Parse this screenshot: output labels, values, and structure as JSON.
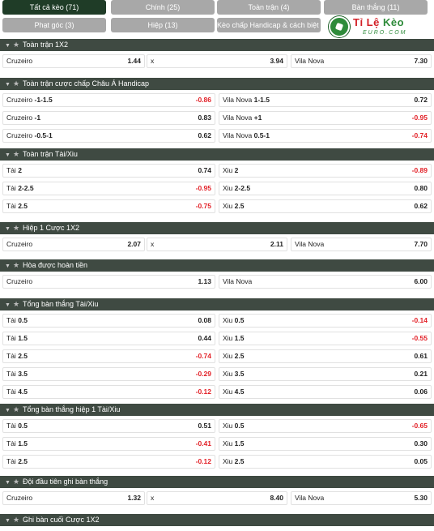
{
  "tabs": [
    {
      "label": "Tất cả kèo (71)",
      "active": true
    },
    {
      "label": "Chính (25)"
    },
    {
      "label": "Toàn trận (4)"
    },
    {
      "label": "Bàn thắng (11)"
    },
    {
      "label": "Phạt góc (3)"
    },
    {
      "label": "Hiệp (13)"
    },
    {
      "label": "Kèo chấp Handicap & cách biệt (3)"
    }
  ],
  "logo": {
    "brand_a": "Tỉ Lệ ",
    "brand_b": "Kèo",
    "sub": "EURO.COM"
  },
  "sections": [
    {
      "title": "Toàn trận 1X2",
      "rows": [
        [
          {
            "label": "Cruzeiro",
            "odd": "1.44"
          },
          {
            "label": "x",
            "odd": "3.94"
          },
          {
            "label": "Vila Nova",
            "odd": "7.30"
          }
        ]
      ]
    },
    {
      "title": "Toàn trận cược chấp Châu Á Handicap",
      "rows": [
        [
          {
            "label": "Cruzeiro",
            "line": "-1-1.5",
            "odd": "-0.86"
          },
          {
            "label": "Vila Nova",
            "line": "1-1.5",
            "odd": "0.72"
          }
        ],
        [
          {
            "label": "Cruzeiro",
            "line": "-1",
            "odd": "0.83"
          },
          {
            "label": "Vila Nova",
            "line": "+1",
            "odd": "-0.95"
          }
        ],
        [
          {
            "label": "Cruzeiro",
            "line": "-0.5-1",
            "odd": "0.62"
          },
          {
            "label": "Vila Nova",
            "line": "0.5-1",
            "odd": "-0.74"
          }
        ]
      ]
    },
    {
      "title": "Toàn trận Tài/Xiu",
      "rows": [
        [
          {
            "label": "Tài",
            "line": "2",
            "odd": "0.74"
          },
          {
            "label": "Xiu",
            "line": "2",
            "odd": "-0.89"
          }
        ],
        [
          {
            "label": "Tài",
            "line": "2-2.5",
            "odd": "-0.95"
          },
          {
            "label": "Xiu",
            "line": "2-2.5",
            "odd": "0.80"
          }
        ],
        [
          {
            "label": "Tài",
            "line": "2.5",
            "odd": "-0.75"
          },
          {
            "label": "Xiu",
            "line": "2.5",
            "odd": "0.62"
          }
        ]
      ]
    },
    {
      "title": "Hiệp 1 Cược 1X2",
      "rows": [
        [
          {
            "label": "Cruzeiro",
            "odd": "2.07"
          },
          {
            "label": "x",
            "odd": "2.11"
          },
          {
            "label": "Vila Nova",
            "odd": "7.70"
          }
        ]
      ]
    },
    {
      "title": "Hòa được hoàn tiền",
      "rows": [
        [
          {
            "label": "Cruzeiro",
            "odd": "1.13"
          },
          {
            "label": "Vila Nova",
            "odd": "6.00"
          }
        ]
      ]
    },
    {
      "title": "Tổng bàn thắng Tài/Xiu",
      "rows": [
        [
          {
            "label": "Tài",
            "line": "0.5",
            "odd": "0.08"
          },
          {
            "label": "Xiu",
            "line": "0.5",
            "odd": "-0.14"
          }
        ],
        [
          {
            "label": "Tài",
            "line": "1.5",
            "odd": "0.44"
          },
          {
            "label": "Xiu",
            "line": "1.5",
            "odd": "-0.55"
          }
        ],
        [
          {
            "label": "Tài",
            "line": "2.5",
            "odd": "-0.74"
          },
          {
            "label": "Xiu",
            "line": "2.5",
            "odd": "0.61"
          }
        ],
        [
          {
            "label": "Tài",
            "line": "3.5",
            "odd": "-0.29"
          },
          {
            "label": "Xiu",
            "line": "3.5",
            "odd": "0.21"
          }
        ],
        [
          {
            "label": "Tài",
            "line": "4.5",
            "odd": "-0.12"
          },
          {
            "label": "Xiu",
            "line": "4.5",
            "odd": "0.06"
          }
        ]
      ]
    },
    {
      "title": "Tổng bàn thắng hiệp 1 Tài/Xiu",
      "rows": [
        [
          {
            "label": "Tài",
            "line": "0.5",
            "odd": "0.51"
          },
          {
            "label": "Xiu",
            "line": "0.5",
            "odd": "-0.65"
          }
        ],
        [
          {
            "label": "Tài",
            "line": "1.5",
            "odd": "-0.41"
          },
          {
            "label": "Xiu",
            "line": "1.5",
            "odd": "0.30"
          }
        ],
        [
          {
            "label": "Tài",
            "line": "2.5",
            "odd": "-0.12"
          },
          {
            "label": "Xiu",
            "line": "2.5",
            "odd": "0.05"
          }
        ]
      ]
    },
    {
      "title": "Đội đầu tiên ghi bàn thắng",
      "rows": [
        [
          {
            "label": "Cruzeiro",
            "odd": "1.32"
          },
          {
            "label": "x",
            "odd": "8.40"
          },
          {
            "label": "Vila Nova",
            "odd": "5.30"
          }
        ]
      ]
    },
    {
      "title": "Ghi bàn cuối Cược 1X2",
      "rows": []
    }
  ]
}
